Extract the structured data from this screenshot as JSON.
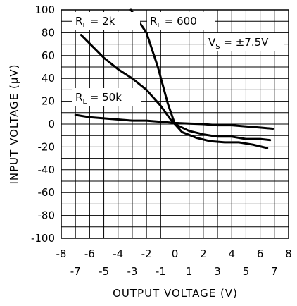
{
  "chart_data": {
    "type": "line",
    "xlabel": "OUTPUT VOLTAGE (V)",
    "ylabel": "INPUT VOLTAGE (μV)",
    "xlim": [
      -8,
      8
    ],
    "ylim": [
      -100,
      100
    ],
    "grid": true,
    "x_ticks_upper": [
      "-8",
      "-6",
      "-4",
      "-2",
      "0",
      "2",
      "4",
      "6",
      "8"
    ],
    "x_ticks_lower": [
      "-7",
      "-5",
      "-3",
      "-1",
      "1",
      "3",
      "5",
      "7"
    ],
    "y_ticks": [
      "100",
      "80",
      "60",
      "40",
      "20",
      "0",
      "-20",
      "-40",
      "-60",
      "-80",
      "-100"
    ],
    "annotations": [
      {
        "main": "R",
        "sub": "L",
        "rest": " = 2k"
      },
      {
        "main": "R",
        "sub": "L",
        "rest": " = 600"
      },
      {
        "main": "V",
        "sub": "S",
        "rest": " = ±7.5V"
      },
      {
        "main": "R",
        "sub": "L",
        "rest": " = 50k"
      }
    ],
    "series": [
      {
        "x": [
          -6.6,
          -5,
          -4,
          -3,
          -2,
          -1,
          -0.3,
          0,
          1,
          2,
          3,
          4,
          5,
          6,
          6.7
        ],
        "y": [
          78,
          58,
          48,
          40,
          30,
          16,
          4,
          0,
          -6,
          -9,
          -11,
          -11,
          -13,
          -13,
          -14
        ]
      },
      {
        "x": [
          -3.1,
          -2,
          -1.2,
          -0.5,
          0,
          0.5,
          1.5,
          2.5,
          3.5,
          4.5,
          5.5,
          6.5
        ],
        "y": [
          100,
          80,
          50,
          18,
          0,
          -7,
          -12,
          -15,
          -16,
          -16,
          -18,
          -21
        ]
      },
      {
        "x": [
          -7,
          -6,
          -4,
          -3,
          -2,
          -1,
          0,
          1,
          2,
          3,
          4,
          5,
          6,
          6.9
        ],
        "y": [
          8,
          6,
          4,
          3,
          3,
          2,
          1,
          0.5,
          0,
          -1,
          -1,
          -2,
          -3,
          -4
        ]
      }
    ]
  }
}
